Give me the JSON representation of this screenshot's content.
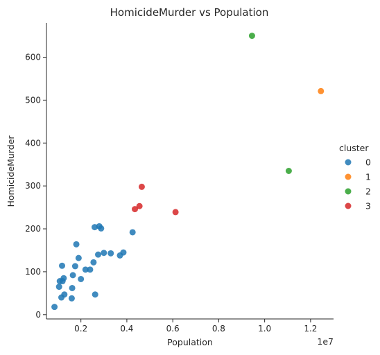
{
  "chart_data": {
    "type": "scatter",
    "title": "HomicideMurder vs Population",
    "xlabel": "Population",
    "ylabel": "HomicideMurder",
    "x_offset_label": "1e7",
    "x_scale_note": "x values in units of 1e7",
    "xlim": [
      0.05,
      1.3
    ],
    "ylim": [
      -10,
      680
    ],
    "x_ticks": [
      "0.2",
      "0.4",
      "0.6",
      "0.8",
      "1.0",
      "1.2"
    ],
    "x_tick_values": [
      0.2,
      0.4,
      0.6,
      0.8,
      1.0,
      1.2
    ],
    "y_ticks": [
      "0",
      "100",
      "200",
      "300",
      "400",
      "500",
      "600"
    ],
    "y_tick_values": [
      0,
      100,
      200,
      300,
      400,
      500,
      600
    ],
    "grid": false,
    "legend": {
      "title": "cluster",
      "placement": "right"
    },
    "series": [
      {
        "name": "0",
        "color": "#1f77b4",
        "points": [
          [
            0.085,
            18
          ],
          [
            0.105,
            65
          ],
          [
            0.108,
            78
          ],
          [
            0.115,
            40
          ],
          [
            0.118,
            114
          ],
          [
            0.12,
            78
          ],
          [
            0.125,
            85
          ],
          [
            0.128,
            47
          ],
          [
            0.16,
            38
          ],
          [
            0.162,
            62
          ],
          [
            0.165,
            92
          ],
          [
            0.175,
            113
          ],
          [
            0.18,
            164
          ],
          [
            0.19,
            132
          ],
          [
            0.2,
            83
          ],
          [
            0.22,
            105
          ],
          [
            0.24,
            105
          ],
          [
            0.255,
            122
          ],
          [
            0.26,
            204
          ],
          [
            0.262,
            47
          ],
          [
            0.275,
            140
          ],
          [
            0.28,
            206
          ],
          [
            0.288,
            201
          ],
          [
            0.3,
            144
          ],
          [
            0.33,
            143
          ],
          [
            0.37,
            138
          ],
          [
            0.385,
            145
          ],
          [
            0.425,
            192
          ]
        ]
      },
      {
        "name": "1",
        "color": "#ff7f0e",
        "points": [
          [
            1.245,
            521
          ]
        ]
      },
      {
        "name": "2",
        "color": "#2ca02c",
        "points": [
          [
            0.945,
            650
          ],
          [
            1.105,
            335
          ]
        ]
      },
      {
        "name": "3",
        "color": "#d62728",
        "points": [
          [
            0.435,
            246
          ],
          [
            0.455,
            253
          ],
          [
            0.465,
            298
          ],
          [
            0.612,
            239
          ]
        ]
      }
    ]
  }
}
